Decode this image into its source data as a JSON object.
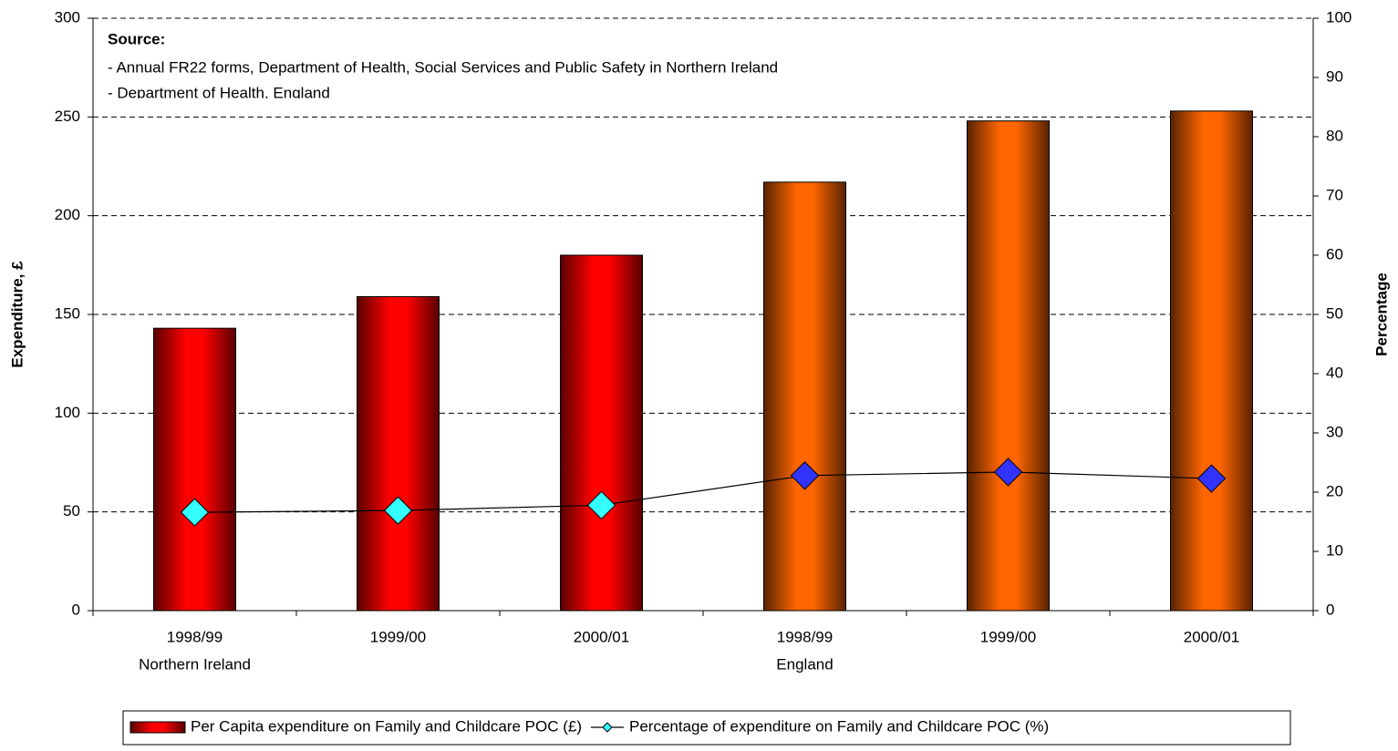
{
  "chart_data": {
    "type": "bar_line",
    "annotation": [
      "Source:",
      "- Annual FR22 forms,  Department of Health, Social Services and Public Safety in Northern Ireland",
      "- Department of Health, England"
    ],
    "categories": [
      "1998/99",
      "1999/00",
      "2000/01",
      "1998/99",
      "1999/00",
      "2000/01"
    ],
    "groups": [
      "Northern Ireland",
      null,
      null,
      "England",
      null,
      null
    ],
    "y_label": "Expenditure, £",
    "y2_label": "Percentage",
    "ylim": [
      0,
      300
    ],
    "yticks": [
      0,
      50,
      100,
      150,
      200,
      250,
      300
    ],
    "y2lim": [
      0,
      100
    ],
    "y2ticks": [
      0,
      10,
      20,
      30,
      40,
      50,
      60,
      70,
      80,
      90,
      100
    ],
    "grid": true,
    "series": [
      {
        "name": "Per Capita expenditure on Family and Childcare POC (£)",
        "type": "bar",
        "color": "#ff0000",
        "point_colors": [
          "#ff0000",
          "#ff0000",
          "#ff0000",
          "#ff6600",
          "#ff6600",
          "#ff6600"
        ],
        "values": [
          143,
          159,
          180,
          217,
          248,
          253
        ]
      },
      {
        "name": "Percentage of expenditure on Family and Childcare POC (%)",
        "type": "line",
        "axis": "y2",
        "color": "#000000",
        "marker_colors": [
          "#33ffff",
          "#33ffff",
          "#33ffff",
          "#3333ff",
          "#3333ff",
          "#3333ff"
        ],
        "values": [
          16.6,
          16.9,
          17.8,
          22.8,
          23.4,
          22.3
        ]
      }
    ]
  }
}
